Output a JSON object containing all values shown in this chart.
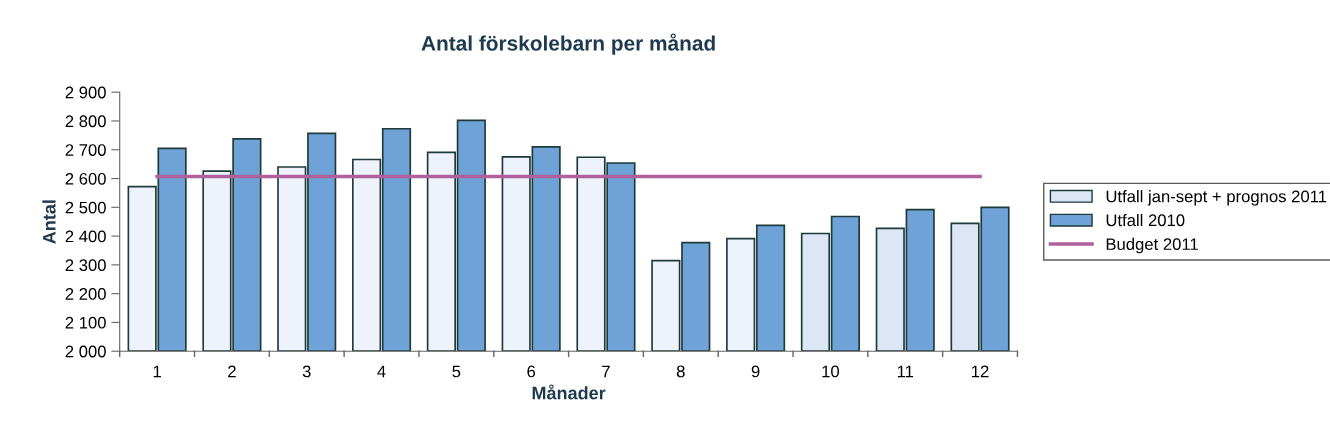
{
  "chart_data": {
    "type": "bar",
    "title": "Antal förskolebarn per månad",
    "xlabel": "Månader",
    "ylabel": "Antal",
    "categories": [
      "1",
      "2",
      "3",
      "4",
      "5",
      "6",
      "7",
      "8",
      "9",
      "10",
      "11",
      "12"
    ],
    "series": [
      {
        "name": "Utfall jan-sept + prognos 2011",
        "color": "#dce6f4",
        "colors": [
          "#eef3fb",
          "#eef3fb",
          "#eef3fb",
          "#eef3fb",
          "#eef3fb",
          "#eef3fb",
          "#eef3fb",
          "#eef3fb",
          "#eef3fb",
          "#dce6f4",
          "#dce6f4",
          "#dce6f4"
        ],
        "values": [
          2572,
          2626,
          2640,
          2666,
          2691,
          2675,
          2674,
          2315,
          2391,
          2409,
          2427,
          2444
        ]
      },
      {
        "name": "Utfall 2010",
        "color": "#6fa3d8",
        "values": [
          2705,
          2738,
          2757,
          2773,
          2802,
          2710,
          2654,
          2377,
          2437,
          2468,
          2492,
          2500
        ]
      },
      {
        "name": "Budget 2011",
        "type": "line",
        "color": "#b0609c",
        "values": [
          2607,
          2607,
          2607,
          2607,
          2607,
          2607,
          2607,
          2607,
          2607,
          2607,
          2607,
          2607
        ]
      }
    ],
    "ylim": [
      2000,
      2900
    ],
    "yticks": [
      {
        "value": 2000,
        "label": "2 000"
      },
      {
        "value": 2100,
        "label": "2 100"
      },
      {
        "value": 2200,
        "label": "2 200"
      },
      {
        "value": 2300,
        "label": "2 300"
      },
      {
        "value": 2400,
        "label": "2 400"
      },
      {
        "value": 2500,
        "label": "2 500"
      },
      {
        "value": 2600,
        "label": "2 600"
      },
      {
        "value": 2700,
        "label": "2 700"
      },
      {
        "value": 2800,
        "label": "2 800"
      },
      {
        "value": 2900,
        "label": "2 900"
      }
    ],
    "legend": "right",
    "grid": false
  }
}
